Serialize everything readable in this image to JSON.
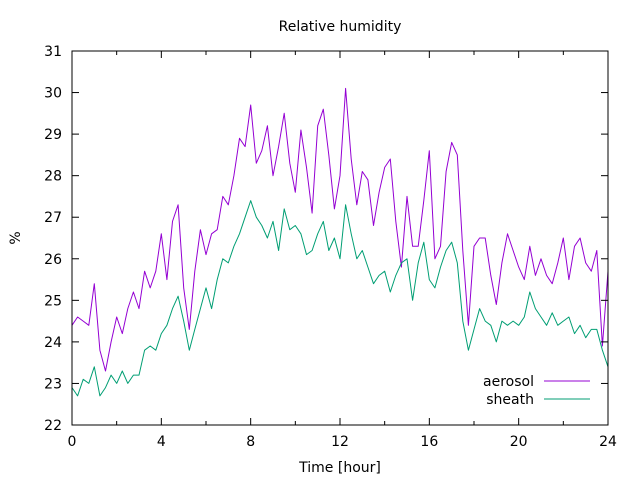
{
  "chart_data": {
    "type": "line",
    "title": "Relative humidity",
    "xlabel": "Time [hour]",
    "ylabel": "%",
    "xlim": [
      0,
      24
    ],
    "ylim": [
      22,
      31
    ],
    "xticks": [
      0,
      4,
      8,
      12,
      16,
      20,
      24
    ],
    "yticks": [
      22,
      23,
      24,
      25,
      26,
      27,
      28,
      29,
      30,
      31
    ],
    "grid": false,
    "legend_position": "bottom-right",
    "series": [
      {
        "name": "aerosol",
        "color": "#9400d3",
        "x": [
          0,
          0.25,
          0.5,
          0.75,
          1.0,
          1.25,
          1.5,
          1.75,
          2.0,
          2.25,
          2.5,
          2.75,
          3.0,
          3.25,
          3.5,
          3.75,
          4.0,
          4.25,
          4.5,
          4.75,
          5.0,
          5.25,
          5.5,
          5.75,
          6.0,
          6.25,
          6.5,
          6.75,
          7.0,
          7.25,
          7.5,
          7.75,
          8.0,
          8.25,
          8.5,
          8.75,
          9.0,
          9.25,
          9.5,
          9.75,
          10.0,
          10.25,
          10.5,
          10.75,
          11.0,
          11.25,
          11.5,
          11.75,
          12.0,
          12.25,
          12.5,
          12.75,
          13.0,
          13.25,
          13.5,
          13.75,
          14.0,
          14.25,
          14.5,
          14.75,
          15.0,
          15.25,
          15.5,
          15.75,
          16.0,
          16.25,
          16.5,
          16.75,
          17.0,
          17.25,
          17.5,
          17.75,
          18.0,
          18.25,
          18.5,
          18.75,
          19.0,
          19.25,
          19.5,
          19.75,
          20.0,
          20.25,
          20.5,
          20.75,
          21.0,
          21.25,
          21.5,
          21.75,
          22.0,
          22.25,
          22.5,
          22.75,
          23.0,
          23.25,
          23.5,
          23.75,
          24.0
        ],
        "y": [
          24.4,
          24.6,
          24.5,
          24.4,
          25.4,
          23.8,
          23.3,
          24.0,
          24.6,
          24.2,
          24.8,
          25.2,
          24.8,
          25.7,
          25.3,
          25.7,
          26.6,
          25.5,
          26.9,
          27.3,
          25.3,
          24.3,
          25.7,
          26.7,
          26.1,
          26.6,
          26.7,
          27.5,
          27.3,
          28.0,
          28.9,
          28.7,
          29.7,
          28.3,
          28.6,
          29.2,
          28.0,
          28.7,
          29.5,
          28.3,
          27.6,
          29.1,
          28.2,
          27.1,
          29.2,
          29.6,
          28.5,
          27.2,
          28.0,
          30.1,
          28.4,
          27.3,
          28.1,
          27.9,
          26.8,
          27.6,
          28.2,
          28.4,
          26.9,
          25.8,
          27.5,
          26.3,
          26.3,
          27.4,
          28.6,
          26.0,
          26.3,
          28.1,
          28.8,
          28.5,
          26.2,
          24.4,
          26.3,
          26.5,
          26.5,
          25.6,
          24.9,
          25.9,
          26.6,
          26.2,
          25.8,
          25.5,
          26.3,
          25.6,
          26.0,
          25.6,
          25.4,
          25.9,
          26.5,
          25.5,
          26.3,
          26.5,
          25.9,
          25.7,
          26.2,
          23.9,
          25.7
        ]
      },
      {
        "name": "sheath",
        "color": "#009e73",
        "x": [
          0,
          0.25,
          0.5,
          0.75,
          1.0,
          1.25,
          1.5,
          1.75,
          2.0,
          2.25,
          2.5,
          2.75,
          3.0,
          3.25,
          3.5,
          3.75,
          4.0,
          4.25,
          4.5,
          4.75,
          5.0,
          5.25,
          5.5,
          5.75,
          6.0,
          6.25,
          6.5,
          6.75,
          7.0,
          7.25,
          7.5,
          7.75,
          8.0,
          8.25,
          8.5,
          8.75,
          9.0,
          9.25,
          9.5,
          9.75,
          10.0,
          10.25,
          10.5,
          10.75,
          11.0,
          11.25,
          11.5,
          11.75,
          12.0,
          12.25,
          12.5,
          12.75,
          13.0,
          13.25,
          13.5,
          13.75,
          14.0,
          14.25,
          14.5,
          14.75,
          15.0,
          15.25,
          15.5,
          15.75,
          16.0,
          16.25,
          16.5,
          16.75,
          17.0,
          17.25,
          17.5,
          17.75,
          18.0,
          18.25,
          18.5,
          18.75,
          19.0,
          19.25,
          19.5,
          19.75,
          20.0,
          20.25,
          20.5,
          20.75,
          21.0,
          21.25,
          21.5,
          21.75,
          22.0,
          22.25,
          22.5,
          22.75,
          23.0,
          23.25,
          23.5,
          23.75,
          24.0
        ],
        "y": [
          22.9,
          22.7,
          23.1,
          23.0,
          23.4,
          22.7,
          22.9,
          23.2,
          23.0,
          23.3,
          23.0,
          23.2,
          23.2,
          23.8,
          23.9,
          23.8,
          24.2,
          24.4,
          24.8,
          25.1,
          24.5,
          23.8,
          24.3,
          24.8,
          25.3,
          24.8,
          25.5,
          26.0,
          25.9,
          26.3,
          26.6,
          27.0,
          27.4,
          27.0,
          26.8,
          26.5,
          26.9,
          26.2,
          27.2,
          26.7,
          26.8,
          26.6,
          26.1,
          26.2,
          26.6,
          26.9,
          26.2,
          26.5,
          26.0,
          27.3,
          26.6,
          26.0,
          26.2,
          25.8,
          25.4,
          25.6,
          25.7,
          25.2,
          25.6,
          25.9,
          26.0,
          25.0,
          25.9,
          26.4,
          25.5,
          25.3,
          25.8,
          26.2,
          26.4,
          25.9,
          24.5,
          23.8,
          24.3,
          24.8,
          24.5,
          24.4,
          24.0,
          24.5,
          24.4,
          24.5,
          24.4,
          24.6,
          25.2,
          24.8,
          24.6,
          24.4,
          24.7,
          24.4,
          24.5,
          24.6,
          24.2,
          24.4,
          24.1,
          24.3,
          24.3,
          23.8,
          23.4
        ]
      }
    ]
  }
}
